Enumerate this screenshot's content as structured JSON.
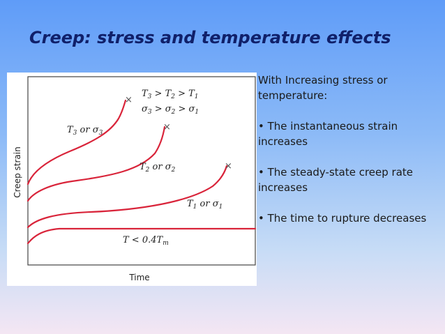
{
  "slide": {
    "title": "Creep: stress and temperature effects"
  },
  "panel": {
    "intro": "With Increasing stress or temperature:",
    "bullets": [
      "• The instantaneous strain increases",
      "• The steady-state creep rate increases",
      "• The time to rupture decreases"
    ]
  },
  "figure": {
    "ylabel": "Creep strain",
    "xlabel": "Time",
    "order_temp": [
      "T",
      "3",
      " > T",
      "2",
      " > T",
      "1"
    ],
    "order_stress": [
      "σ",
      "3",
      " > σ",
      "2",
      " > σ",
      "1"
    ],
    "curve_labels": {
      "c3": [
        "T",
        "3",
        " or σ",
        "3"
      ],
      "c2": [
        "T",
        "2",
        " or σ",
        "2"
      ],
      "c1": [
        "T",
        "1",
        " or σ",
        "1"
      ],
      "c0": [
        "T < 0.4T",
        "m"
      ]
    },
    "rupture_mark": "×",
    "curve_color": "#d9243a"
  }
}
